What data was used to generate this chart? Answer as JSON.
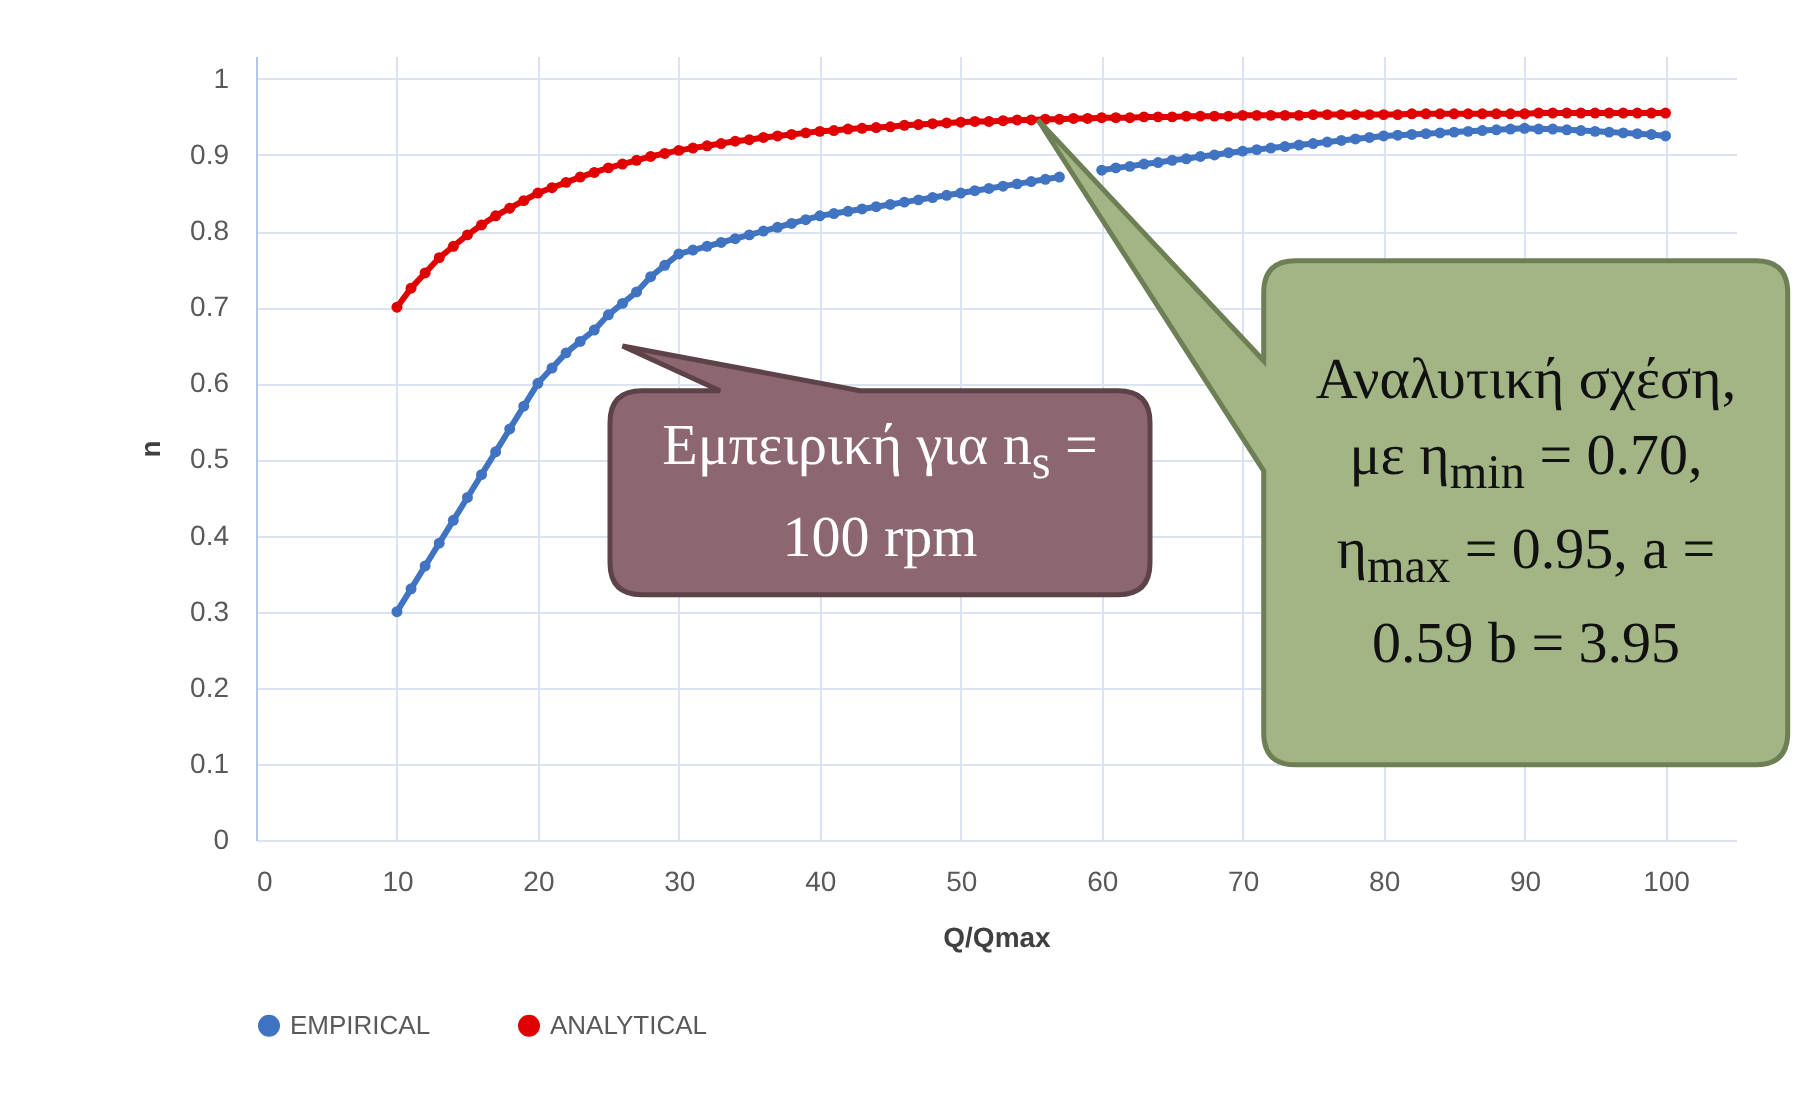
{
  "chart_data": {
    "type": "line",
    "xlabel": "Q/Qmax",
    "ylabel": "n",
    "x": [
      10,
      11,
      12,
      13,
      14,
      15,
      16,
      17,
      18,
      19,
      20,
      21,
      22,
      23,
      24,
      25,
      26,
      27,
      28,
      29,
      30,
      31,
      32,
      33,
      34,
      35,
      36,
      37,
      38,
      39,
      40,
      41,
      42,
      43,
      44,
      45,
      46,
      47,
      48,
      49,
      50,
      51,
      52,
      53,
      54,
      55,
      56,
      57,
      58,
      59,
      60,
      61,
      62,
      63,
      64,
      65,
      66,
      67,
      68,
      69,
      70,
      71,
      72,
      73,
      74,
      75,
      76,
      77,
      78,
      79,
      80,
      81,
      82,
      83,
      84,
      85,
      86,
      87,
      88,
      89,
      90,
      91,
      92,
      93,
      94,
      95,
      96,
      97,
      98,
      99,
      100
    ],
    "series": [
      {
        "name": "EMPIRICAL",
        "color": "#4073c2",
        "values": [
          0.3,
          0.33,
          0.36,
          0.39,
          0.42,
          0.45,
          0.48,
          0.51,
          0.54,
          0.57,
          0.6,
          0.62,
          0.64,
          0.655,
          0.67,
          0.69,
          0.705,
          0.72,
          0.74,
          0.755,
          0.77,
          0.775,
          0.78,
          0.785,
          0.79,
          0.795,
          0.8,
          0.805,
          0.81,
          0.815,
          0.82,
          0.823,
          0.826,
          0.829,
          0.832,
          0.835,
          0.838,
          0.841,
          0.844,
          0.847,
          0.85,
          0.853,
          0.856,
          0.859,
          0.862,
          0.865,
          0.868,
          0.871,
          null,
          null,
          0.88,
          0.883,
          0.885,
          0.888,
          0.89,
          0.893,
          0.895,
          0.898,
          0.9,
          0.903,
          0.905,
          0.907,
          0.909,
          0.911,
          0.913,
          0.915,
          0.917,
          0.919,
          0.921,
          0.923,
          0.925,
          0.926,
          0.927,
          0.928,
          0.929,
          0.93,
          0.931,
          0.932,
          0.933,
          0.934,
          0.935,
          0.934,
          0.934,
          0.933,
          0.932,
          0.931,
          0.93,
          0.929,
          0.928,
          0.927,
          0.925
        ]
      },
      {
        "name": "ANALYTICAL",
        "color": "#e00000",
        "values": [
          0.7,
          0.725,
          0.745,
          0.765,
          0.78,
          0.795,
          0.808,
          0.82,
          0.83,
          0.84,
          0.85,
          0.857,
          0.864,
          0.871,
          0.877,
          0.883,
          0.888,
          0.893,
          0.898,
          0.902,
          0.906,
          0.909,
          0.912,
          0.915,
          0.918,
          0.92,
          0.923,
          0.925,
          0.927,
          0.929,
          0.931,
          0.932,
          0.934,
          0.935,
          0.936,
          0.937,
          0.939,
          0.94,
          0.941,
          0.942,
          0.943,
          0.944,
          0.944,
          0.945,
          0.946,
          0.946,
          0.947,
          0.947,
          0.948,
          0.948,
          0.949,
          0.949,
          0.949,
          0.95,
          0.95,
          0.95,
          0.951,
          0.951,
          0.951,
          0.951,
          0.952,
          0.952,
          0.952,
          0.952,
          0.952,
          0.953,
          0.953,
          0.953,
          0.953,
          0.953,
          0.953,
          0.953,
          0.954,
          0.954,
          0.954,
          0.954,
          0.954,
          0.954,
          0.954,
          0.954,
          0.954,
          0.955,
          0.955,
          0.955,
          0.955,
          0.955,
          0.955,
          0.955,
          0.955,
          0.955,
          0.955
        ]
      }
    ],
    "xlim": [
      0,
      105
    ],
    "xticks": [
      0,
      10,
      20,
      30,
      40,
      50,
      60,
      70,
      80,
      90,
      100
    ],
    "ylim": [
      0,
      1.03
    ],
    "yticks": [
      0,
      0.1,
      0.2,
      0.3,
      0.4,
      0.5,
      0.6,
      0.7,
      0.8,
      0.9,
      1
    ],
    "grid": true,
    "legend": "bottom",
    "marker": "circle",
    "annotations": [
      "Εμπειρική για n$_{s}$ = 100 rpm",
      "Αναλυτική σχέση, με η$_{min}$ = 0.70, η$_{max}$ = 0.95, a = 0.59 b = 3.95"
    ]
  }
}
